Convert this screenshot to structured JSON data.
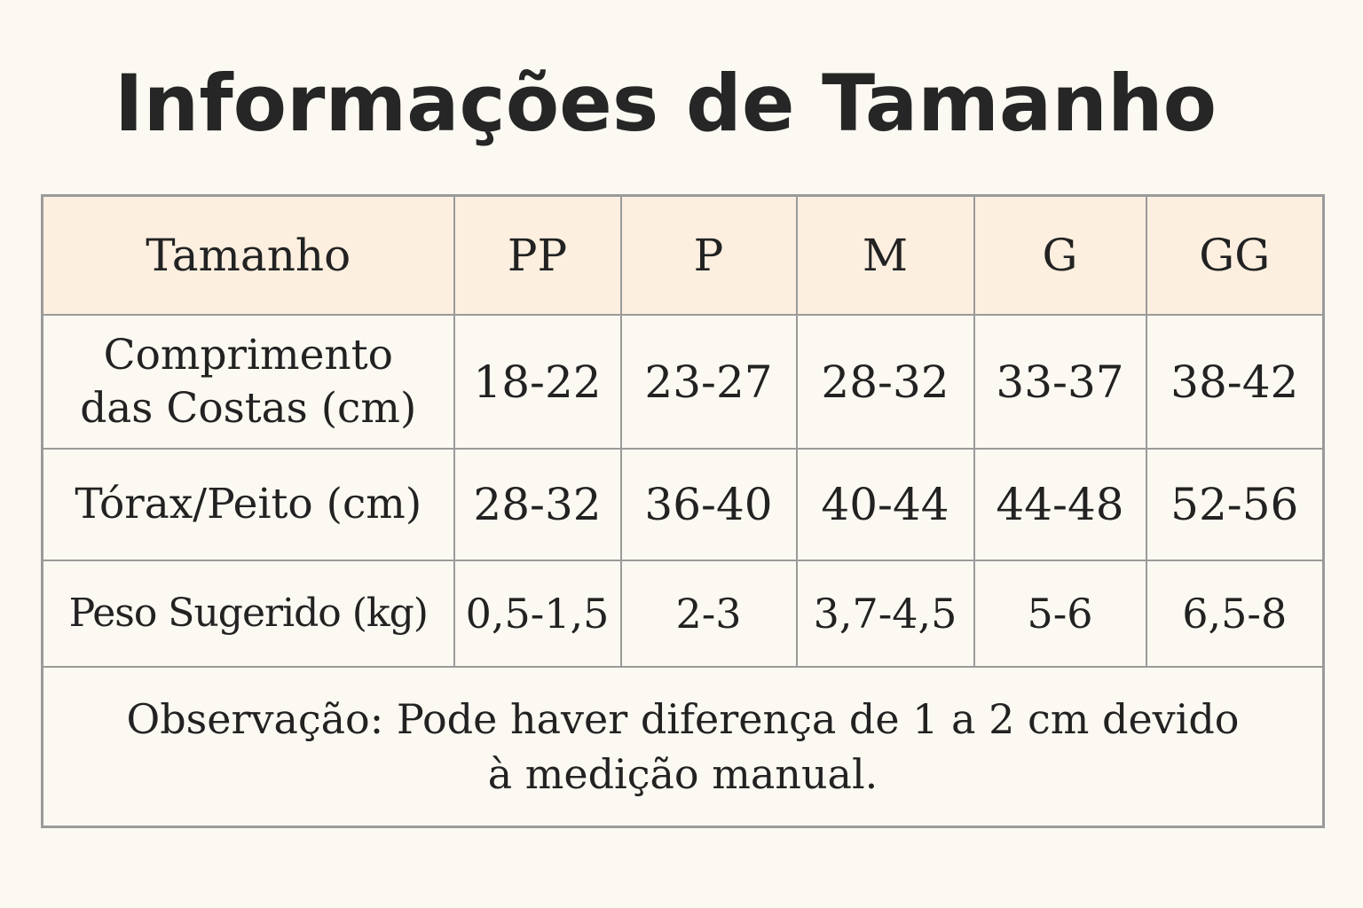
{
  "title": "Informações de Tamanho",
  "table": {
    "header": {
      "label": "Tamanho",
      "sizes": [
        "PP",
        "P",
        "M",
        "G",
        "GG"
      ]
    },
    "rows": [
      {
        "label": "Comprimento\ndas Costas (cm)",
        "values": [
          "18-22",
          "23-27",
          "28-32",
          "33-37",
          "38-42"
        ]
      },
      {
        "label": "Tórax/Peito (cm)",
        "values": [
          "28-32",
          "36-40",
          "40-44",
          "44-48",
          "52-56"
        ]
      },
      {
        "label": "Peso Sugerido (kg)",
        "values": [
          "0,5-1,5",
          "2-3",
          "3,7-4,5",
          "5-6",
          "6,5-8"
        ]
      }
    ],
    "note": "Observação: Pode haver diferença de 1 a 2 cm devido\nà medição manual."
  },
  "colors": {
    "background": "#fcf9f2",
    "header_background": "#fcefdf",
    "border": "#9a9a9a",
    "text": "#222222"
  }
}
